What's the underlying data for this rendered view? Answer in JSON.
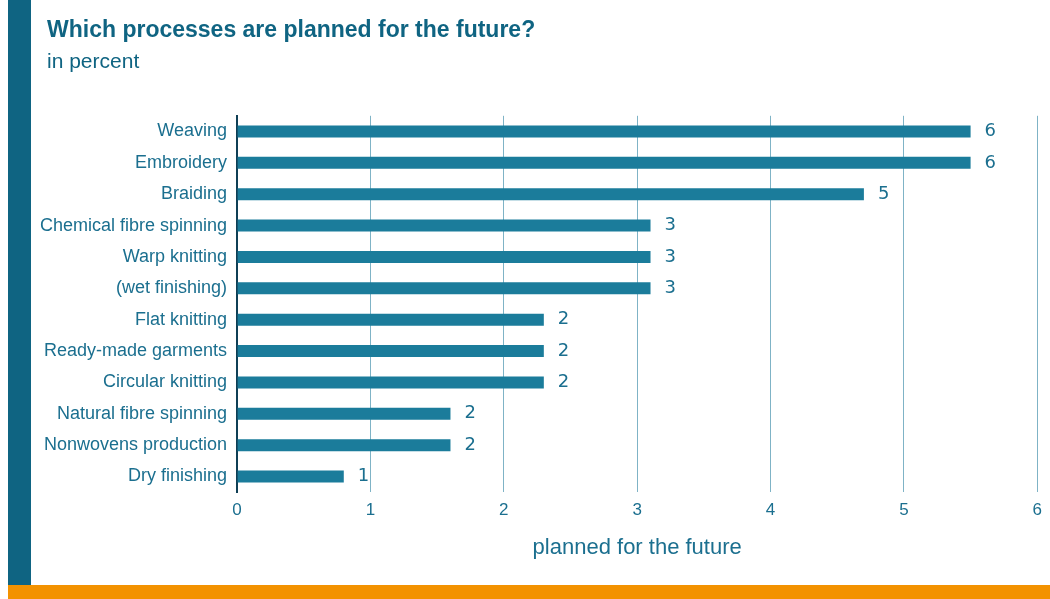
{
  "chart_data": {
    "type": "bar",
    "orientation": "horizontal",
    "title": "Which processes are planned for the future?",
    "subtitle": "in percent",
    "xlabel": "planned for the future",
    "categories": [
      "Weaving",
      "Embroidery",
      "Braiding",
      "Chemical fibre spinning",
      "Warp knitting",
      "(wet finishing)",
      "Flat knitting",
      "Ready-made garments",
      "Circular knitting",
      "Natural fibre spinning",
      "Nonwovens production",
      "Dry finishing"
    ],
    "values": [
      5.5,
      5.5,
      4.7,
      3.1,
      3.1,
      3.1,
      2.3,
      2.3,
      2.3,
      1.6,
      1.6,
      0.8
    ],
    "value_labels": [
      "6",
      "6",
      "5",
      "3",
      "3",
      "3",
      "2",
      "2",
      "2",
      "2",
      "2",
      "1"
    ],
    "color": "#1b7c9b",
    "xlim": [
      0,
      6
    ],
    "xticks": [
      0,
      1,
      2,
      3,
      4,
      5,
      6
    ],
    "grid": "x"
  }
}
